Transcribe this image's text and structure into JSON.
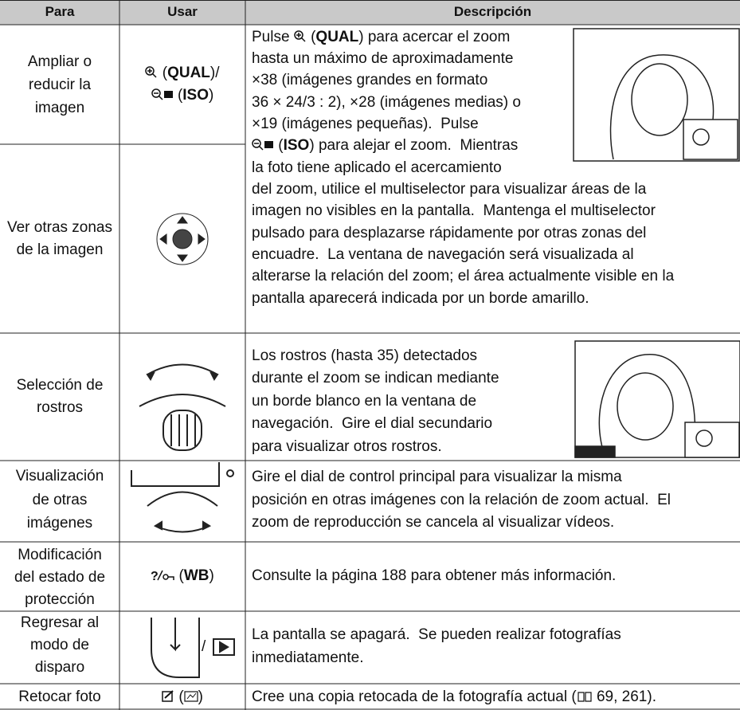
{
  "table": {
    "header": [
      "Para",
      "Usar",
      "Descripción"
    ],
    "rows": [
      {
        "para": [
          "Ampliar o",
          "reducir la",
          "imagen"
        ],
        "usar": [
          "(",
          "QUAL",
          ")/",
          "(",
          "ISO",
          ")"
        ],
        "descripcion": [
          [
            "Pulse",
            "(",
            "QUAL",
            ") para acercar el zoom"
          ],
          [
            "hasta un máximo de aproximadamente"
          ],
          [
            "×38 (imágenes grandes en formato"
          ],
          [
            "36 × 24/3 : 2), ×28 (imágenes medias) o"
          ],
          [
            "×19 (imágenes pequeñas).  Pulse"
          ],
          [
            "(",
            "ISO",
            ") para alejar el zoom.  Mientras"
          ],
          [
            "la foto tiene aplicado el acercamiento"
          ],
          [
            "del zoom, utilice el multiselector para visualizar áreas de la"
          ],
          [
            "imagen no visibles en la pantalla.  Mantenga el multiselector"
          ],
          [
            "pulsado para desplazarse rápidamente por otras zonas del"
          ],
          [
            "encuadre.  La ventana de navegación será visualizada al"
          ],
          [
            "alterarse la relación del zoom; el área actualmente visible en la"
          ],
          [
            "pantalla aparecerá indicada por un borde amarillo."
          ]
        ]
      },
      {
        "para": [
          "Ver otras zonas",
          "de la imagen"
        ]
      },
      {
        "para": [
          "Selección de",
          "rostros"
        ],
        "descripcion": [
          "Los rostros (hasta 35) detectados",
          "durante el zoom se indican mediante",
          "un borde blanco en la ventana de",
          "navegación.  Gire el dial secundario",
          "para visualizar otros rostros."
        ]
      },
      {
        "para": [
          "Visualización",
          "de otras",
          "imágenes"
        ],
        "descripcion": [
          "Gire el dial de control principal para visualizar la misma",
          "posición en otras imágenes con la relación de zoom actual.  El",
          "zoom de reproducción se cancela al visualizar vídeos."
        ]
      },
      {
        "para": [
          "Modificación",
          "del estado de",
          "protección"
        ],
        "usar": [
          "(",
          "WB",
          ")"
        ],
        "descripcion": [
          "Consulte la página 188 para obtener más información."
        ]
      },
      {
        "para": [
          "Regresar al",
          "modo de",
          "disparo"
        ],
        "usar": [
          "/"
        ],
        "descripcion": [
          "La pantalla se apagará.  Se pueden realizar fotografías",
          "inmediatamente."
        ]
      },
      {
        "para": [
          "Retocar foto"
        ],
        "usar": [
          "(",
          ")"
        ],
        "descripcion": [
          "Cree una copia retocada de la fotografía actual (",
          "69, 261)."
        ]
      }
    ]
  }
}
